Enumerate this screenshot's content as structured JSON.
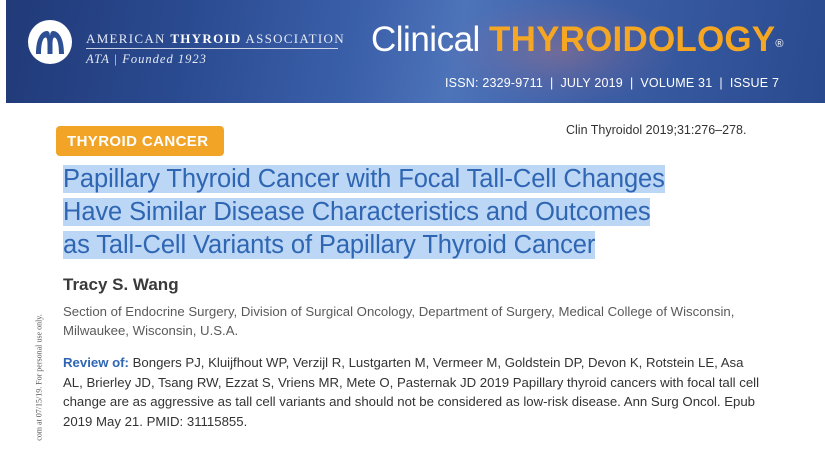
{
  "header": {
    "org_name_regular_1": "AMERICAN",
    "org_name_bold": "THYROID",
    "org_name_regular_2": "ASSOCIATION",
    "org_tagline": "ATA | Founded 1923",
    "journal_title_part1": "Clinical",
    "journal_title_part2": "THYROIDOLOGY",
    "journal_title_mark": "®",
    "issn": "ISSN: 2329-9711",
    "date": "JULY 2019",
    "volume": "VOLUME 31",
    "issue": "ISSUE 7",
    "separator": "|",
    "colors": {
      "banner": "#2a4a90",
      "accent": "#f5a623"
    }
  },
  "article": {
    "section_badge": "THYROID CANCER",
    "citation": "Clin Thyroidol 2019;31:276–278.",
    "title_lines": [
      "Papillary Thyroid Cancer with Focal Tall-Cell Changes",
      "Have Similar Disease Characteristics and Outcomes",
      "as Tall-Cell Variants of Papillary Thyroid Cancer"
    ],
    "author": "Tracy S. Wang",
    "affiliation": "Section of Endocrine Surgery, Division of Surgical Oncology, Department of Surgery, Medical College of Wisconsin, Milwaukee, Wisconsin, U.S.A.",
    "review_label": "Review of:",
    "review_text": "Bongers PJ, Kluijfhout WP, Verzijl R, Lustgarten M, Vermeer M, Goldstein DP, Devon K, Rotstein LE, Asa AL, Brierley JD, Tsang RW, Ezzat S, Vriens MR, Mete O, Pasternak JD 2019 Papillary thyroid cancers with focal tall cell change are as aggressive as tall cell variants and should not be considered as low-risk disease. Ann Surg Oncol. Epub 2019 May 21. PMID: 31115855.",
    "colors": {
      "title": "#2f66b3",
      "selection": "#bcd6f5",
      "badge": "#f1a426"
    }
  },
  "side_note": "com at 07/15/19. For personal use only."
}
